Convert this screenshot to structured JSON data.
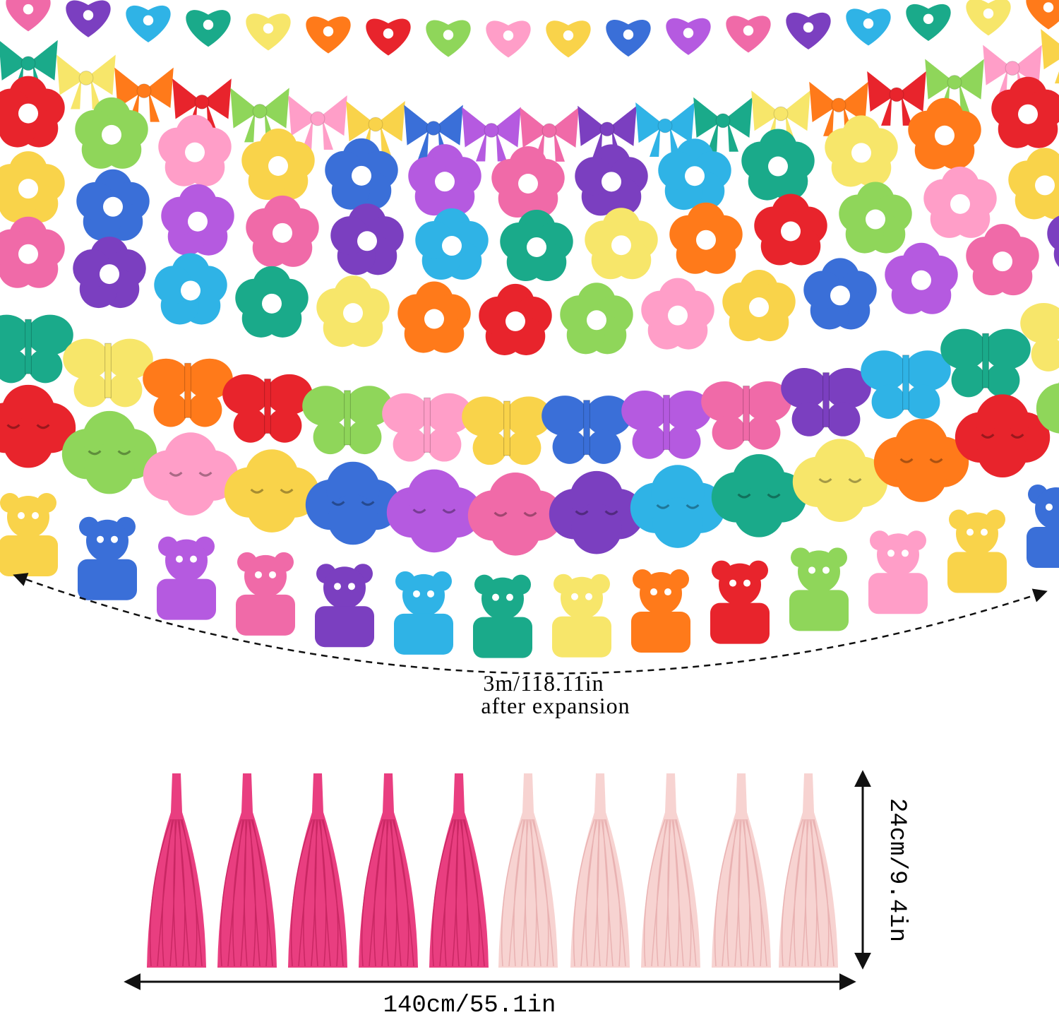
{
  "garland_length": {
    "line1": "3m/118.11in",
    "line2": "after expansion"
  },
  "tassel_width": "140cm/55.1in",
  "tassel_height": "24cm/9.4in"
}
